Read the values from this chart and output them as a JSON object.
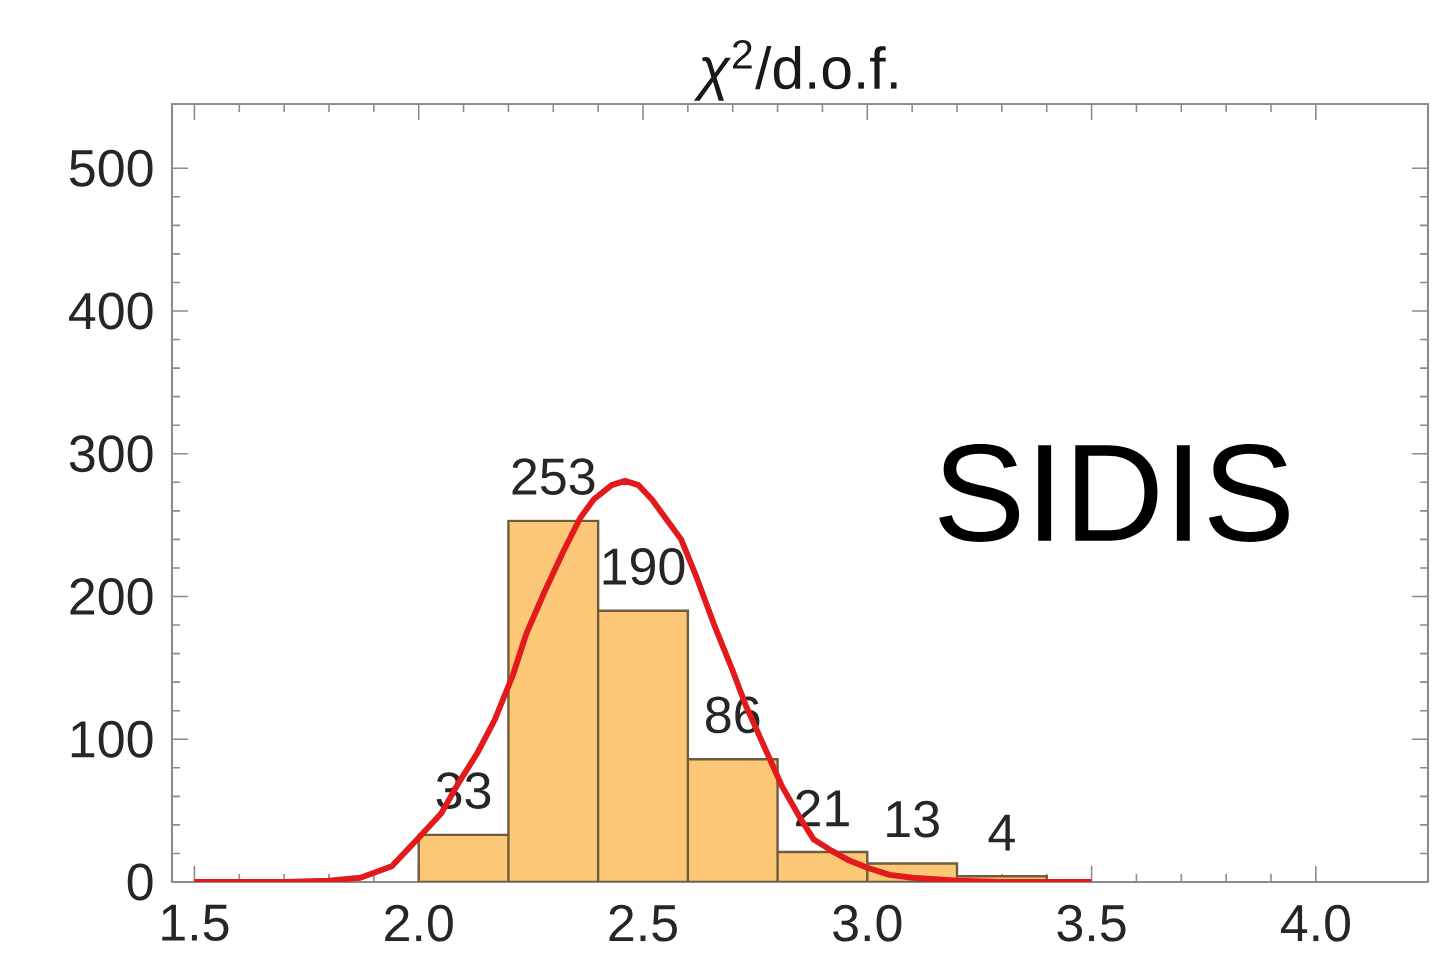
{
  "chart_data": {
    "type": "histogram",
    "title": "*χ*$^{2}$/d.o.f.",
    "series": [
      {
        "type": "histogram",
        "bins": [
          2.0,
          2.2,
          2.4,
          2.6,
          2.8,
          3.0,
          3.2,
          3.4
        ],
        "values": [
          33,
          253,
          190,
          86,
          21,
          13,
          4
        ],
        "value_labels": [
          "33",
          "253",
          "190",
          "86",
          "21",
          "13",
          "4"
        ],
        "color": "#fcc878"
      },
      {
        "type": "line",
        "x": [
          1.5,
          1.6,
          1.7,
          1.8,
          1.87,
          1.94,
          2.0,
          2.05,
          2.09,
          2.13,
          2.17,
          2.21,
          2.24,
          2.28,
          2.32,
          2.36,
          2.39,
          2.43,
          2.46,
          2.49,
          2.52,
          2.55,
          2.585,
          2.62,
          2.66,
          2.7,
          2.73,
          2.77,
          2.81,
          2.85,
          2.88,
          2.92,
          2.96,
          3.0,
          3.05,
          3.1,
          3.2,
          3.3,
          3.4,
          3.5
        ],
        "values": [
          0,
          0,
          0,
          1,
          3,
          11,
          31,
          48,
          70,
          90,
          114,
          145,
          174,
          203,
          230,
          255,
          268,
          278,
          281,
          278,
          268,
          255,
          240,
          213,
          179,
          148,
          123,
          95,
          67,
          45,
          30,
          22,
          15,
          10,
          5,
          3,
          1,
          0,
          0,
          0
        ],
        "color": "#e31a1c"
      }
    ],
    "xlim": [
      1.45,
      4.25
    ],
    "ylim": [
      0,
      545
    ],
    "xticks": [
      1.5,
      {
        "value": 2,
        "label": "2.0"
      },
      2.5,
      {
        "value": 3,
        "label": "3.0"
      },
      3.5,
      {
        "value": 4,
        "label": "4.0"
      }
    ],
    "yticks": [
      0,
      100,
      200,
      300,
      400,
      500
    ],
    "annotations": [
      "SIDIS"
    ]
  }
}
